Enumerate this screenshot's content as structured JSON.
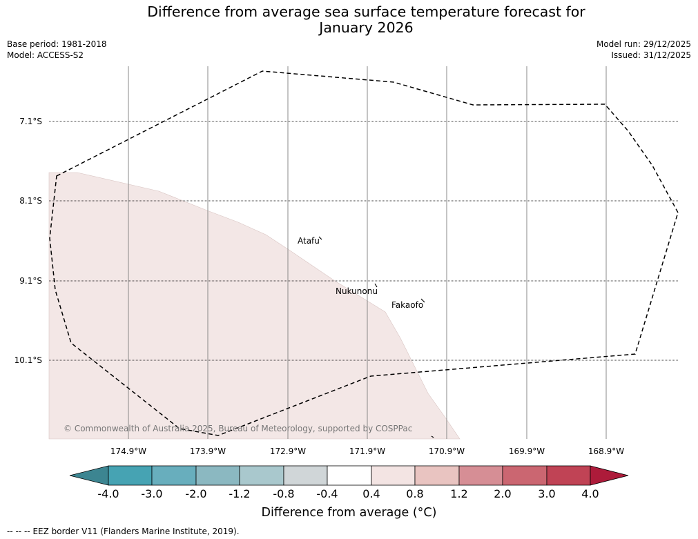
{
  "title_line1": "Difference from average sea surface temperature forecast for",
  "title_line2": "January 2026",
  "base_period": "Base period: 1981-2018",
  "model": "Model: ACCESS-S2",
  "model_run": "Model run: 29/12/2025",
  "issued": "Issued: 31/12/2025",
  "latitudes": [
    "7.1°S",
    "8.1°S",
    "9.1°S",
    "10.1°S"
  ],
  "longitudes": [
    "174.9°W",
    "173.9°W",
    "172.9°W",
    "171.9°W",
    "170.9°W",
    "169.9°W",
    "168.9°W"
  ],
  "places": [
    "Atafu",
    "Nukunonu",
    "Fakaofo"
  ],
  "copyright": "© Commonwealth of Australia 2025, Bureau of Meteorology, supported by COSPPac",
  "colorbar": {
    "ticks": [
      "-4.0",
      "-3.0",
      "-2.0",
      "-1.2",
      "-0.8",
      "-0.4",
      "0.4",
      "0.8",
      "1.2",
      "2.0",
      "3.0",
      "4.0"
    ],
    "colors": [
      "#3c8591",
      "#46a3b3",
      "#68aebd",
      "#8bb8c1",
      "#a9c8cd",
      "#d0d6d8",
      "#ffffff",
      "#f3e4e3",
      "#e9c4c1",
      "#d68e95",
      "#cb6671",
      "#c04355",
      "#ad1b3a"
    ],
    "label": "Difference from average (°C)"
  },
  "eez_note": "EEZ border V11 (Flanders Marine Institute, 2019).",
  "legend_dash": "--  --  --",
  "colors": {
    "anomaly_fill": "#f3e7e6",
    "gridline": "#888888",
    "copyright": "#777777"
  }
}
